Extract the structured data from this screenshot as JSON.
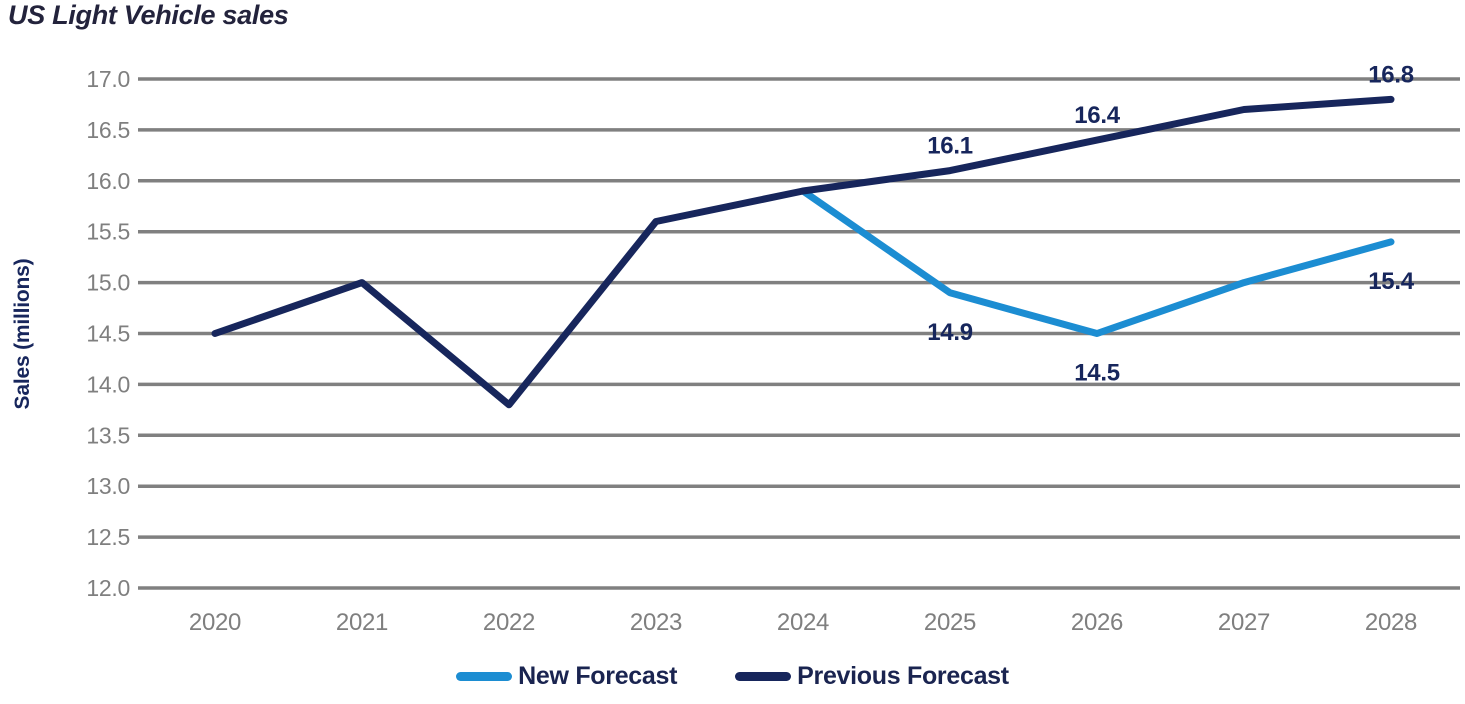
{
  "title": "US Light Vehicle sales",
  "y_axis_title": "Sales (millions)",
  "colors": {
    "background": "#ffffff",
    "title_text": "#23233C",
    "axis_title_text": "#17265C",
    "gridline": "#808080",
    "tick_text": "#7F7F7F",
    "data_label_text": "#17265C",
    "legend_text": "#1A2450",
    "new_forecast_line": "#1C8DD2",
    "previous_forecast_line": "#17265C"
  },
  "legend": [
    {
      "label": "New Forecast",
      "color": "#1C8DD2"
    },
    {
      "label": "Previous Forecast",
      "color": "#17265C"
    }
  ],
  "chart_data": {
    "type": "line",
    "title": "US Light Vehicle sales",
    "xlabel": "",
    "ylabel": "Sales (millions)",
    "categories": [
      "2020",
      "2021",
      "2022",
      "2023",
      "2024",
      "2025",
      "2026",
      "2027",
      "2028"
    ],
    "ylim": [
      12.0,
      17.0
    ],
    "ytick_step": 0.5,
    "ytick_format_decimals": 1,
    "grid": "horizontal",
    "legend_position": "bottom",
    "series": [
      {
        "name": "New Forecast",
        "color": "#1C8DD2",
        "values": [
          null,
          null,
          null,
          null,
          15.9,
          14.9,
          14.5,
          15.0,
          15.4
        ],
        "data_labels": [
          null,
          null,
          null,
          null,
          null,
          "14.9",
          "14.5",
          null,
          "15.4"
        ],
        "label_side": "below"
      },
      {
        "name": "Previous Forecast",
        "color": "#17265C",
        "values": [
          14.5,
          15.0,
          13.8,
          15.6,
          15.9,
          16.1,
          16.4,
          16.7,
          16.8
        ],
        "data_labels": [
          null,
          null,
          null,
          null,
          null,
          "16.1",
          "16.4",
          null,
          "16.8"
        ],
        "label_side": "above"
      }
    ]
  }
}
